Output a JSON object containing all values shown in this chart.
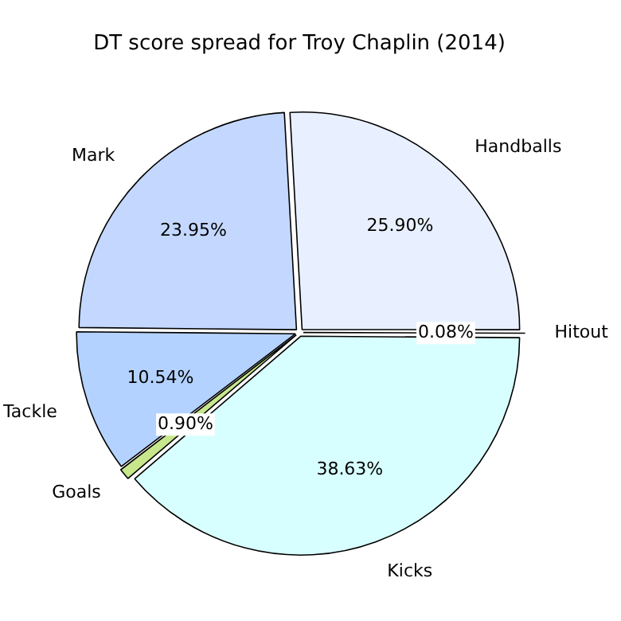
{
  "chart_data": {
    "type": "pie",
    "title": "DT score spread for Troy Chaplin (2014)",
    "categories": [
      "Handballs",
      "Hitout",
      "Kicks",
      "Goals",
      "Tackle",
      "Mark"
    ],
    "values": [
      25.9,
      0.08,
      38.63,
      0.9,
      10.54,
      23.95
    ],
    "colors": [
      "#e8f0ff",
      "#e8f0ff",
      "#d8ffff",
      "#c8e68c",
      "#b4d2ff",
      "#c4d8ff"
    ],
    "value_labels": [
      "25.90%",
      "0.08%",
      "38.63%",
      "0.90%",
      "10.54%",
      "23.95%"
    ],
    "legend": false
  }
}
